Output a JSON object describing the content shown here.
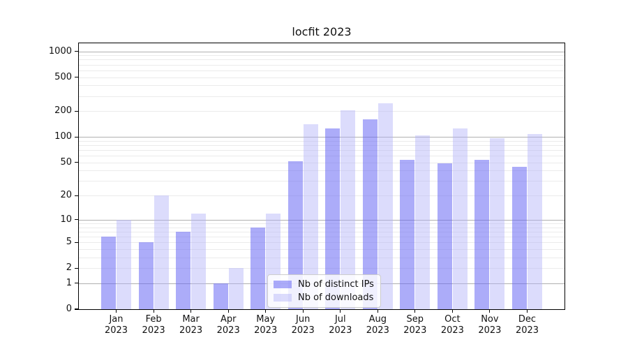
{
  "chart_data": {
    "type": "bar",
    "title": "locfit 2023",
    "scale": "log1p",
    "grid": true,
    "legend_position": "lower-center-inside",
    "categories": [
      "Jan",
      "Feb",
      "Mar",
      "Apr",
      "May",
      "Jun",
      "Jul",
      "Aug",
      "Sep",
      "Oct",
      "Nov",
      "Dec"
    ],
    "category_year": "2023",
    "series": [
      {
        "name": "Nb of distinct IPs",
        "color": "rgba(104,104,244,0.55)",
        "values": [
          6,
          5,
          7,
          1,
          8,
          52,
          125,
          160,
          54,
          49,
          54,
          44
        ]
      },
      {
        "name": "Nb of downloads",
        "color": "rgba(178,178,248,0.45)",
        "values": [
          10,
          20,
          12,
          2,
          12,
          140,
          205,
          250,
          105,
          125,
          97,
          108
        ]
      }
    ],
    "yticks": [
      0,
      1,
      2,
      5,
      10,
      20,
      50,
      100,
      200,
      500,
      1000
    ],
    "ylim": [
      0,
      1240
    ],
    "xlabel": "",
    "ylabel": "",
    "major_grid_color": "#b0b0b0",
    "minor_grid_color": "#ebebeb"
  }
}
